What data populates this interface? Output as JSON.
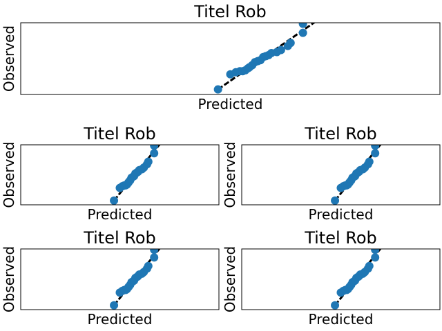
{
  "chart_data": [
    {
      "type": "scatter",
      "title": "Titel Rob",
      "xlabel": "Predicted",
      "ylabel": "Observed",
      "ticks": "none",
      "grid": false,
      "xlim": [
        -7.3,
        8.0
      ],
      "ylim": [
        -0.15,
        3.4
      ],
      "series": [
        {
          "x": [
            -0.1,
            0.35,
            0.55,
            0.7,
            0.8,
            0.9,
            1.0,
            1.05,
            1.15,
            1.25,
            1.35,
            1.45,
            1.55,
            1.65,
            1.75,
            1.85,
            2.05,
            2.2,
            2.45,
            2.55,
            3.0,
            3.0
          ],
          "y": [
            0.1,
            0.85,
            0.95,
            1.0,
            1.0,
            1.05,
            1.15,
            1.2,
            1.3,
            1.45,
            1.5,
            1.55,
            1.7,
            1.75,
            1.8,
            1.9,
            1.95,
            2.05,
            2.25,
            2.4,
            2.9,
            3.35
          ],
          "color": "#1f77b4"
        }
      ],
      "reference_line": {
        "style": "dashed",
        "color": "#000000",
        "x": [
          -0.1,
          3.45
        ],
        "y": [
          0.1,
          3.45
        ]
      }
    },
    {
      "type": "scatter",
      "title": "Titel Rob",
      "xlabel": "Predicted",
      "ylabel": "Observed",
      "same_data_as": 0
    },
    {
      "type": "scatter",
      "title": "Titel Rob",
      "xlabel": "Predicted",
      "ylabel": "Observed",
      "same_data_as": 0
    },
    {
      "type": "scatter",
      "title": "Titel Rob",
      "xlabel": "Predicted",
      "ylabel": "Observed",
      "same_data_as": 0
    },
    {
      "type": "scatter",
      "title": "Titel Rob",
      "xlabel": "Predicted",
      "ylabel": "Observed",
      "same_data_as": 0
    }
  ]
}
